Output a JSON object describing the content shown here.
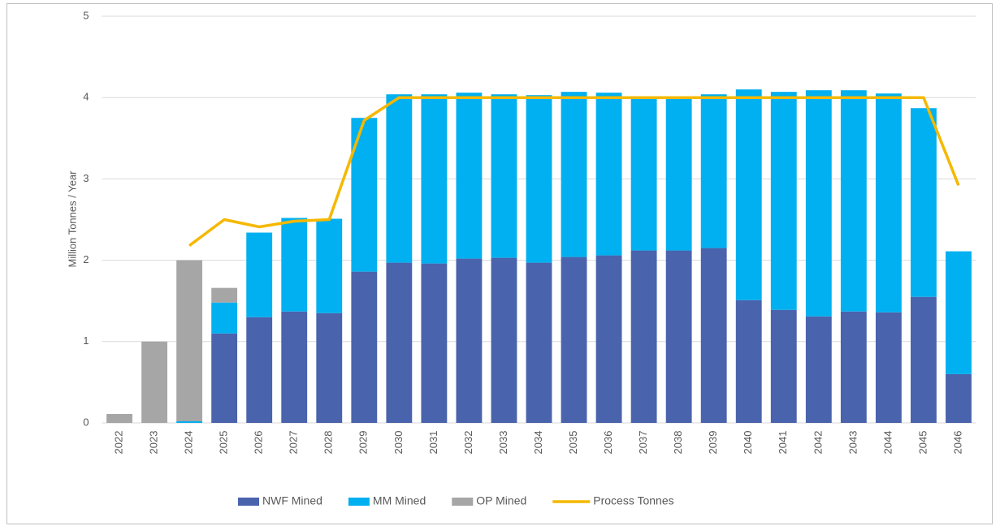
{
  "chart_data": {
    "type": "bar",
    "stacked": true,
    "y_label": "Million Tonnes / Year",
    "categories": [
      "2022",
      "2023",
      "2024",
      "2025",
      "2026",
      "2027",
      "2028",
      "2029",
      "2030",
      "2031",
      "2032",
      "2033",
      "2034",
      "2035",
      "2036",
      "2037",
      "2038",
      "2039",
      "2040",
      "2041",
      "2042",
      "2043",
      "2044",
      "2045",
      "2046"
    ],
    "series": [
      {
        "name": "NWF Mined",
        "type": "bar",
        "color": "#4a63ad",
        "values": [
          0,
          0,
          0,
          1.1,
          1.3,
          1.37,
          1.35,
          1.86,
          1.97,
          1.96,
          2.02,
          2.03,
          1.97,
          2.04,
          2.06,
          2.12,
          2.12,
          2.15,
          1.51,
          1.39,
          1.31,
          1.37,
          1.36,
          1.55,
          0.6
        ]
      },
      {
        "name": "MM Mined",
        "type": "bar",
        "color": "#00b0f0",
        "values": [
          0,
          0,
          0.02,
          0.38,
          1.04,
          1.15,
          1.16,
          1.89,
          2.07,
          2.08,
          2.04,
          2.01,
          2.06,
          2.03,
          2.0,
          1.88,
          1.88,
          1.89,
          2.59,
          2.68,
          2.78,
          2.72,
          2.69,
          2.32,
          1.51
        ]
      },
      {
        "name": "OP Mined",
        "type": "bar",
        "color": "#a6a6a6",
        "values": [
          0.11,
          1.0,
          1.98,
          0.18,
          0,
          0,
          0,
          0,
          0,
          0,
          0,
          0,
          0,
          0,
          0,
          0,
          0,
          0,
          0,
          0,
          0,
          0,
          0,
          0,
          0
        ]
      },
      {
        "name": "Process Tonnes",
        "type": "line",
        "color": "#f5b800",
        "values": [
          null,
          null,
          2.18,
          2.5,
          2.41,
          2.48,
          2.5,
          3.72,
          4.0,
          4.0,
          4.0,
          4.0,
          4.0,
          4.0,
          4.0,
          4.0,
          4.0,
          4.0,
          4.0,
          4.0,
          4.0,
          4.0,
          4.0,
          4.0,
          2.92
        ]
      }
    ],
    "ylim": [
      0,
      5
    ],
    "yticks": [
      0,
      1,
      2,
      3,
      4,
      5
    ],
    "grid": true,
    "legend": "bottom"
  }
}
